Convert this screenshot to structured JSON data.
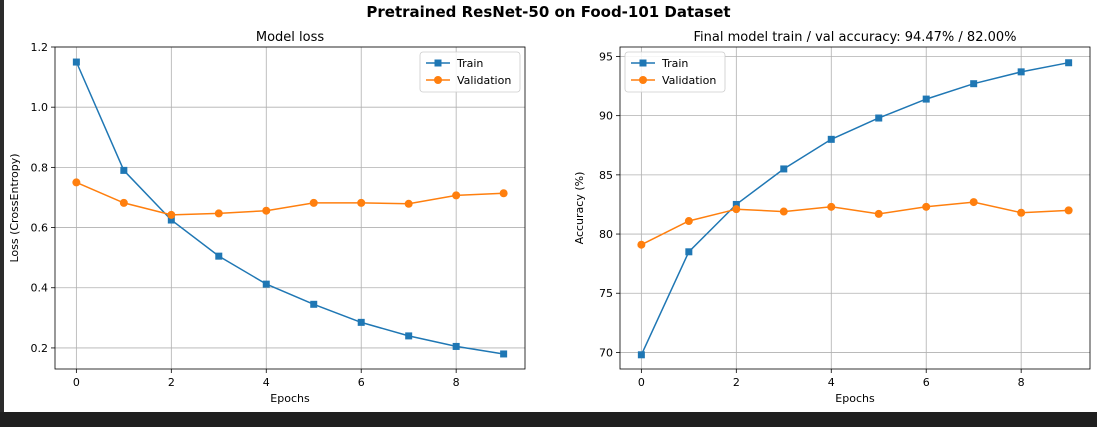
{
  "figure": {
    "suptitle": "Pretrained ResNet-50 on Food-101 Dataset"
  },
  "colors": {
    "train": "#1f77b4",
    "validation": "#ff7f0e",
    "grid": "#b0b0b0",
    "bar": "#1f1f1f"
  },
  "chart_data": [
    {
      "type": "line",
      "title": "Model loss",
      "xlabel": "Epochs",
      "ylabel": "Loss (CrossEntropy)",
      "x": [
        0,
        1,
        2,
        3,
        4,
        5,
        6,
        7,
        8,
        9
      ],
      "xlim": [
        -0.45,
        9.45
      ],
      "ylim": [
        0.13,
        1.2
      ],
      "xticks": [
        0,
        2,
        4,
        6,
        8
      ],
      "yticks": [
        0.2,
        0.4,
        0.6,
        0.8,
        1.0,
        1.2
      ],
      "ytick_labels": [
        "0.2",
        "0.4",
        "0.6",
        "0.8",
        "1.0",
        "1.2"
      ],
      "grid": true,
      "legend": "top-right",
      "series": [
        {
          "name": "Train",
          "marker": "square",
          "color": "#1f77b4",
          "values": [
            1.15,
            0.79,
            0.625,
            0.505,
            0.412,
            0.345,
            0.285,
            0.24,
            0.205,
            0.18
          ]
        },
        {
          "name": "Validation",
          "marker": "circle",
          "color": "#ff7f0e",
          "values": [
            0.75,
            0.682,
            0.642,
            0.647,
            0.656,
            0.682,
            0.682,
            0.679,
            0.707,
            0.714
          ]
        }
      ]
    },
    {
      "type": "line",
      "title": "Final model train / val accuracy: 94.47% / 82.00%",
      "xlabel": "Epochs",
      "ylabel": "Accuracy (%)",
      "x": [
        0,
        1,
        2,
        3,
        4,
        5,
        6,
        7,
        8,
        9
      ],
      "xlim": [
        -0.45,
        9.45
      ],
      "ylim": [
        68.6,
        95.8
      ],
      "xticks": [
        0,
        2,
        4,
        6,
        8
      ],
      "yticks": [
        70,
        75,
        80,
        85,
        90,
        95
      ],
      "ytick_labels": [
        "70",
        "75",
        "80",
        "85",
        "90",
        "95"
      ],
      "grid": true,
      "legend": "top-left",
      "series": [
        {
          "name": "Train",
          "marker": "square",
          "color": "#1f77b4",
          "values": [
            69.8,
            78.5,
            82.5,
            85.5,
            88.0,
            89.8,
            91.4,
            92.7,
            93.7,
            94.47
          ]
        },
        {
          "name": "Validation",
          "marker": "circle",
          "color": "#ff7f0e",
          "values": [
            79.1,
            81.1,
            82.1,
            81.9,
            82.3,
            81.7,
            82.3,
            82.7,
            81.8,
            82.0
          ]
        }
      ]
    }
  ]
}
